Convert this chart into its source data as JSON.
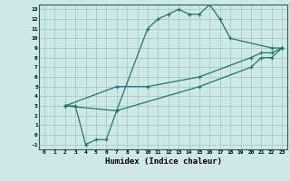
{
  "title": "",
  "xlabel": "Humidex (Indice chaleur)",
  "bg_color": "#cde8e5",
  "grid_color": "#aacfcc",
  "line_color": "#1a7a6e",
  "xlim": [
    -0.5,
    23.5
  ],
  "ylim": [
    -1.5,
    13.5
  ],
  "xticks": [
    0,
    1,
    2,
    3,
    4,
    5,
    6,
    7,
    8,
    9,
    10,
    11,
    12,
    13,
    14,
    15,
    16,
    17,
    18,
    19,
    20,
    21,
    22,
    23
  ],
  "yticks": [
    -1,
    0,
    1,
    2,
    3,
    4,
    5,
    6,
    7,
    8,
    9,
    10,
    11,
    12,
    13
  ],
  "curve1_x": [
    2,
    3,
    4,
    5,
    6,
    7,
    10,
    11,
    12,
    13,
    14,
    15,
    16,
    17,
    18,
    22,
    23
  ],
  "curve1_y": [
    3,
    3,
    -1,
    -0.5,
    -0.5,
    2.5,
    11,
    12,
    12.5,
    13,
    12.5,
    12.5,
    13.5,
    12,
    10,
    9,
    9
  ],
  "curve2_x": [
    2,
    7,
    10,
    15,
    20,
    21,
    22,
    23
  ],
  "curve2_y": [
    3,
    5,
    5,
    6,
    8,
    8.5,
    8.5,
    9
  ],
  "curve3_x": [
    2,
    7,
    15,
    20,
    21,
    22,
    23
  ],
  "curve3_y": [
    3,
    2.5,
    5,
    7,
    8,
    8,
    9
  ]
}
